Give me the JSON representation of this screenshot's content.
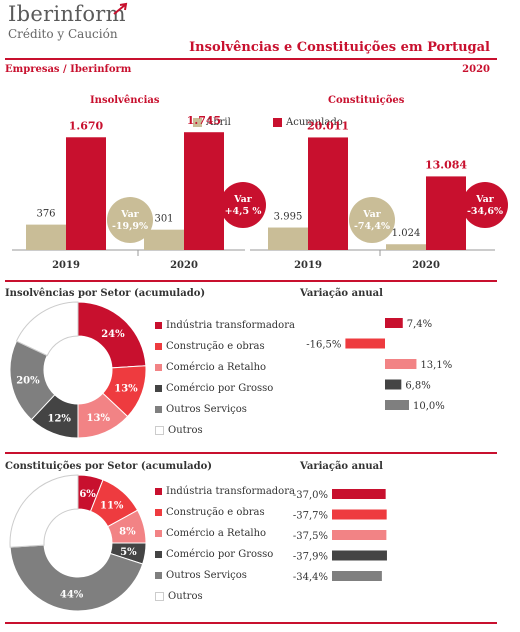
{
  "header": {
    "brand": "Iberinform",
    "brand_sub": "Crédito y Caución",
    "title": "Insolvências e Constituições em  Portugal",
    "subtitle_left": "Empresas / Iberinform",
    "subtitle_right": "2020"
  },
  "colors": {
    "accent": "#c8102e",
    "abril": "#c9bd97",
    "acumulado": "#c8102e",
    "var_bubble_tan": "#c9bd97",
    "sector": [
      "#c8102e",
      "#ee3b3f",
      "#f28385",
      "#444444",
      "#7f7f7f",
      "#ffffff"
    ]
  },
  "legend": {
    "abril": "Abril",
    "acumulado": "Acumulado"
  },
  "chart_data": [
    {
      "type": "bar",
      "title": "Insolvências",
      "categories": [
        "2019",
        "2020"
      ],
      "series": [
        {
          "name": "Abril",
          "values": [
            376,
            301
          ],
          "labels": [
            "376",
            "301"
          ]
        },
        {
          "name": "Acumulado",
          "values": [
            1670,
            1745
          ],
          "labels": [
            "1.670",
            "1.745"
          ]
        }
      ],
      "annotations": [
        {
          "label": "Var",
          "value": "-19,9%",
          "series": "Abril"
        },
        {
          "label": "Var",
          "value": "+4,5 %",
          "series": "Acumulado"
        }
      ],
      "ylim": [
        0,
        2000
      ]
    },
    {
      "type": "bar",
      "title": "Constituições",
      "categories": [
        "2019",
        "2020"
      ],
      "series": [
        {
          "name": "Abril",
          "values": [
            3995,
            1024
          ],
          "labels": [
            "3.995",
            "1.024"
          ]
        },
        {
          "name": "Acumulado",
          "values": [
            20011,
            13084
          ],
          "labels": [
            "20.011",
            "13.084"
          ]
        }
      ],
      "annotations": [
        {
          "label": "Var",
          "value": "-74,4%",
          "series": "Abril"
        },
        {
          "label": "Var",
          "value": "-34,6%",
          "series": "Acumulado"
        }
      ],
      "ylim": [
        0,
        24000
      ]
    },
    {
      "type": "pie",
      "title": "Insolvências por Setor (acumulado)",
      "labels": [
        "Indústria transformadora",
        "Construção e obras",
        "Comércio a Retalho",
        "Comércio por Grosso",
        "Outros Serviços",
        "Outros"
      ],
      "values": [
        24,
        13,
        13,
        12,
        20,
        18
      ],
      "slice_labels": [
        "24%",
        "13%",
        "13%",
        "12%",
        "20%",
        ""
      ]
    },
    {
      "type": "bar",
      "title": "Variação anual",
      "orientation": "horizontal",
      "categories": [
        "Indústria transformadora",
        "Construção e obras",
        "Comércio a Retalho",
        "Comércio por Grosso",
        "Outros Serviços"
      ],
      "values": [
        7.4,
        -16.5,
        13.1,
        6.8,
        10.0
      ],
      "labels": [
        "7,4%",
        "-16,5%",
        "13,1%",
        "6,8%",
        "10,0%"
      ]
    },
    {
      "type": "pie",
      "title": "Constituições por Setor (acumulado)",
      "labels": [
        "Indústria transformadora",
        "Construção e obras",
        "Comércio a Retalho",
        "Comércio por Grosso",
        "Outros Serviços",
        "Outros"
      ],
      "values": [
        6,
        11,
        8,
        5,
        44,
        26
      ],
      "slice_labels": [
        "6%",
        "11%",
        "8%",
        "5%",
        "44%",
        ""
      ]
    },
    {
      "type": "bar",
      "title": "Variação anual",
      "orientation": "horizontal",
      "categories": [
        "Indústria transformadora",
        "Construção e obras",
        "Comércio a Retalho",
        "Comércio por Grosso",
        "Outros Serviços"
      ],
      "values": [
        -37.0,
        -37.7,
        -37.5,
        -37.9,
        -34.4
      ],
      "labels": [
        "-37,0%",
        "-37,7%",
        "-37,5%",
        "-37,9%",
        "-34,4%"
      ]
    }
  ]
}
